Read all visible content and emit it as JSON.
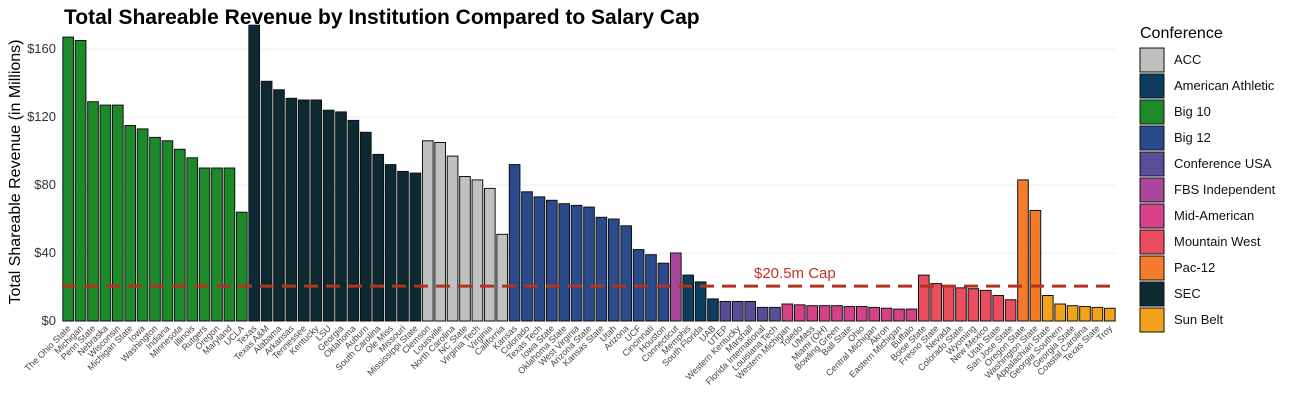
{
  "chart_data": {
    "type": "bar",
    "title": "Total Shareable Revenue by Institution Compared to Salary Cap",
    "ylabel": "Total Shareable Revenue (in Millions)",
    "xlabel": "",
    "ylim": [
      0,
      170
    ],
    "yticks": [
      0,
      40,
      80,
      120,
      160
    ],
    "ytick_labels": [
      "$0",
      "$40",
      "$80",
      "$120",
      "$160"
    ],
    "cap": {
      "value": 20.5,
      "label": "$20.5m Cap",
      "color": "#b0341f"
    },
    "legend": {
      "title": "Conference",
      "items": [
        {
          "name": "ACC",
          "color": "#c0c0c0"
        },
        {
          "name": "American Athletic",
          "color": "#0c3c5e"
        },
        {
          "name": "Big 10",
          "color": "#1d8a2a"
        },
        {
          "name": "Big 12",
          "color": "#2b4a8c"
        },
        {
          "name": "Conference USA",
          "color": "#5b4c9a"
        },
        {
          "name": "FBS Independent",
          "color": "#a9479f"
        },
        {
          "name": "Mid-American",
          "color": "#d6428a"
        },
        {
          "name": "Mountain West",
          "color": "#ea4d5e"
        },
        {
          "name": "Pac-12",
          "color": "#f47b2c"
        },
        {
          "name": "SEC",
          "color": "#0d2a33"
        },
        {
          "name": "Sun Belt",
          "color": "#f3a31a"
        }
      ]
    },
    "bars": [
      {
        "label": "The Ohio State",
        "conference": "Big 10",
        "value": 167
      },
      {
        "label": "Michigan",
        "conference": "Big 10",
        "value": 165
      },
      {
        "label": "Penn State",
        "conference": "Big 10",
        "value": 129
      },
      {
        "label": "Nebraska",
        "conference": "Big 10",
        "value": 127
      },
      {
        "label": "Wisconsin",
        "conference": "Big 10",
        "value": 127
      },
      {
        "label": "Michigan State",
        "conference": "Big 10",
        "value": 115
      },
      {
        "label": "Iowa",
        "conference": "Big 10",
        "value": 113
      },
      {
        "label": "Washington",
        "conference": "Big 10",
        "value": 108
      },
      {
        "label": "Indiana",
        "conference": "Big 10",
        "value": 106
      },
      {
        "label": "Minnesota",
        "conference": "Big 10",
        "value": 101
      },
      {
        "label": "Illinois",
        "conference": "Big 10",
        "value": 96
      },
      {
        "label": "Rutgers",
        "conference": "Big 10",
        "value": 90
      },
      {
        "label": "Oregon",
        "conference": "Big 10",
        "value": 90
      },
      {
        "label": "Maryland",
        "conference": "Big 10",
        "value": 90
      },
      {
        "label": "UCLA",
        "conference": "Big 10",
        "value": 64
      },
      {
        "label": "Texas",
        "conference": "SEC",
        "value": 174
      },
      {
        "label": "Texas A&M",
        "conference": "SEC",
        "value": 141
      },
      {
        "label": "Alabama",
        "conference": "SEC",
        "value": 136
      },
      {
        "label": "Arkansas",
        "conference": "SEC",
        "value": 131
      },
      {
        "label": "Tennessee",
        "conference": "SEC",
        "value": 130
      },
      {
        "label": "Kentucky",
        "conference": "SEC",
        "value": 130
      },
      {
        "label": "LSU",
        "conference": "SEC",
        "value": 124
      },
      {
        "label": "Georgia",
        "conference": "SEC",
        "value": 123
      },
      {
        "label": "Oklahoma",
        "conference": "SEC",
        "value": 118
      },
      {
        "label": "Auburn",
        "conference": "SEC",
        "value": 111
      },
      {
        "label": "South Carolina",
        "conference": "SEC",
        "value": 98
      },
      {
        "label": "Ole Miss",
        "conference": "SEC",
        "value": 92
      },
      {
        "label": "Missouri",
        "conference": "SEC",
        "value": 88
      },
      {
        "label": "Mississippi State",
        "conference": "SEC",
        "value": 87
      },
      {
        "label": "Clemson",
        "conference": "ACC",
        "value": 106
      },
      {
        "label": "Louisville",
        "conference": "ACC",
        "value": 105
      },
      {
        "label": "North Carolina",
        "conference": "ACC",
        "value": 97
      },
      {
        "label": "NC State",
        "conference": "ACC",
        "value": 85
      },
      {
        "label": "Virginia Tech",
        "conference": "ACC",
        "value": 83
      },
      {
        "label": "Virginia",
        "conference": "ACC",
        "value": 78
      },
      {
        "label": "California",
        "conference": "ACC",
        "value": 51
      },
      {
        "label": "Kansas",
        "conference": "Big 12",
        "value": 92
      },
      {
        "label": "Colorado",
        "conference": "Big 12",
        "value": 76
      },
      {
        "label": "Texas Tech",
        "conference": "Big 12",
        "value": 73
      },
      {
        "label": "Iowa State",
        "conference": "Big 12",
        "value": 71
      },
      {
        "label": "Oklahoma State",
        "conference": "Big 12",
        "value": 69
      },
      {
        "label": "West Virginia",
        "conference": "Big 12",
        "value": 68
      },
      {
        "label": "Arizona State",
        "conference": "Big 12",
        "value": 67
      },
      {
        "label": "Kansas State",
        "conference": "Big 12",
        "value": 61
      },
      {
        "label": "Utah",
        "conference": "Big 12",
        "value": 60
      },
      {
        "label": "Arizona",
        "conference": "Big 12",
        "value": 56
      },
      {
        "label": "UCF",
        "conference": "Big 12",
        "value": 42
      },
      {
        "label": "Cincinnati",
        "conference": "Big 12",
        "value": 39
      },
      {
        "label": "Houston",
        "conference": "Big 12",
        "value": 34
      },
      {
        "label": "Connecticut",
        "conference": "FBS Independent",
        "value": 40
      },
      {
        "label": "Memphis",
        "conference": "American Athletic",
        "value": 27
      },
      {
        "label": "South Florida",
        "conference": "American Athletic",
        "value": 23
      },
      {
        "label": "UAB",
        "conference": "American Athletic",
        "value": 13
      },
      {
        "label": "UTEP",
        "conference": "Conference USA",
        "value": 11.5
      },
      {
        "label": "Western Kentucky",
        "conference": "Conference USA",
        "value": 11.5
      },
      {
        "label": "Marshall",
        "conference": "Conference USA",
        "value": 11.5
      },
      {
        "label": "Florida International",
        "conference": "Conference USA",
        "value": 8
      },
      {
        "label": "Louisiana Tech",
        "conference": "Conference USA",
        "value": 8
      },
      {
        "label": "Western Michigan",
        "conference": "Mid-American",
        "value": 10
      },
      {
        "label": "Toledo",
        "conference": "Mid-American",
        "value": 9.5
      },
      {
        "label": "UMass",
        "conference": "Mid-American",
        "value": 9
      },
      {
        "label": "Miami (OH)",
        "conference": "Mid-American",
        "value": 9
      },
      {
        "label": "Bowling Green",
        "conference": "Mid-American",
        "value": 9
      },
      {
        "label": "Ball State",
        "conference": "Mid-American",
        "value": 8.5
      },
      {
        "label": "Ohio",
        "conference": "Mid-American",
        "value": 8.5
      },
      {
        "label": "Central Michigan",
        "conference": "Mid-American",
        "value": 8
      },
      {
        "label": "Akron",
        "conference": "Mid-American",
        "value": 7.5
      },
      {
        "label": "Eastern Michigan",
        "conference": "Mid-American",
        "value": 7
      },
      {
        "label": "Buffalo",
        "conference": "Mid-American",
        "value": 7
      },
      {
        "label": "Boise State",
        "conference": "Mountain West",
        "value": 27
      },
      {
        "label": "Fresno State",
        "conference": "Mountain West",
        "value": 22
      },
      {
        "label": "Nevada",
        "conference": "Mountain West",
        "value": 20
      },
      {
        "label": "Colorado State",
        "conference": "Mountain West",
        "value": 19.5
      },
      {
        "label": "Wyoming",
        "conference": "Mountain West",
        "value": 19
      },
      {
        "label": "New Mexico",
        "conference": "Mountain West",
        "value": 18
      },
      {
        "label": "Utah State",
        "conference": "Mountain West",
        "value": 15
      },
      {
        "label": "San Jose State",
        "conference": "Mountain West",
        "value": 12.5
      },
      {
        "label": "Oregon State",
        "conference": "Pac-12",
        "value": 83
      },
      {
        "label": "Washington State",
        "conference": "Pac-12",
        "value": 65
      },
      {
        "label": "Appalachian State",
        "conference": "Sun Belt",
        "value": 15
      },
      {
        "label": "Georgia Southern",
        "conference": "Sun Belt",
        "value": 10
      },
      {
        "label": "Georgia State",
        "conference": "Sun Belt",
        "value": 9
      },
      {
        "label": "Coastal Carolina",
        "conference": "Sun Belt",
        "value": 8.5
      },
      {
        "label": "Texas State",
        "conference": "Sun Belt",
        "value": 8
      },
      {
        "label": "Troy",
        "conference": "Sun Belt",
        "value": 7.5
      }
    ]
  }
}
